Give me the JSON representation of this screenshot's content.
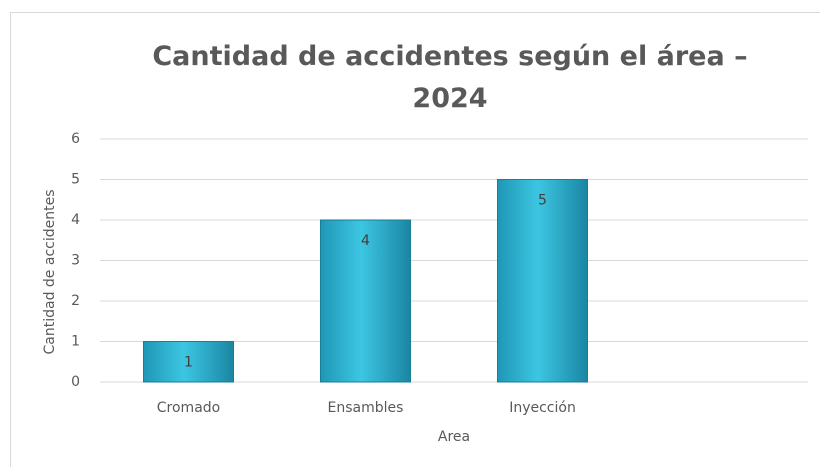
{
  "chart_data": {
    "type": "bar",
    "title": "Cantidad de accidentes según el área – 2024",
    "x_label": "Area",
    "y_label": "Cantidad de accidentes",
    "categories": [
      "Cromado",
      "Ensambles",
      "Inyección",
      null
    ],
    "values": [
      1,
      4,
      5,
      null
    ],
    "color": "#2bb3d2",
    "ylim": [
      0,
      6
    ],
    "yticks": [
      0,
      1,
      2,
      3,
      4,
      5,
      6
    ],
    "grid": true
  }
}
